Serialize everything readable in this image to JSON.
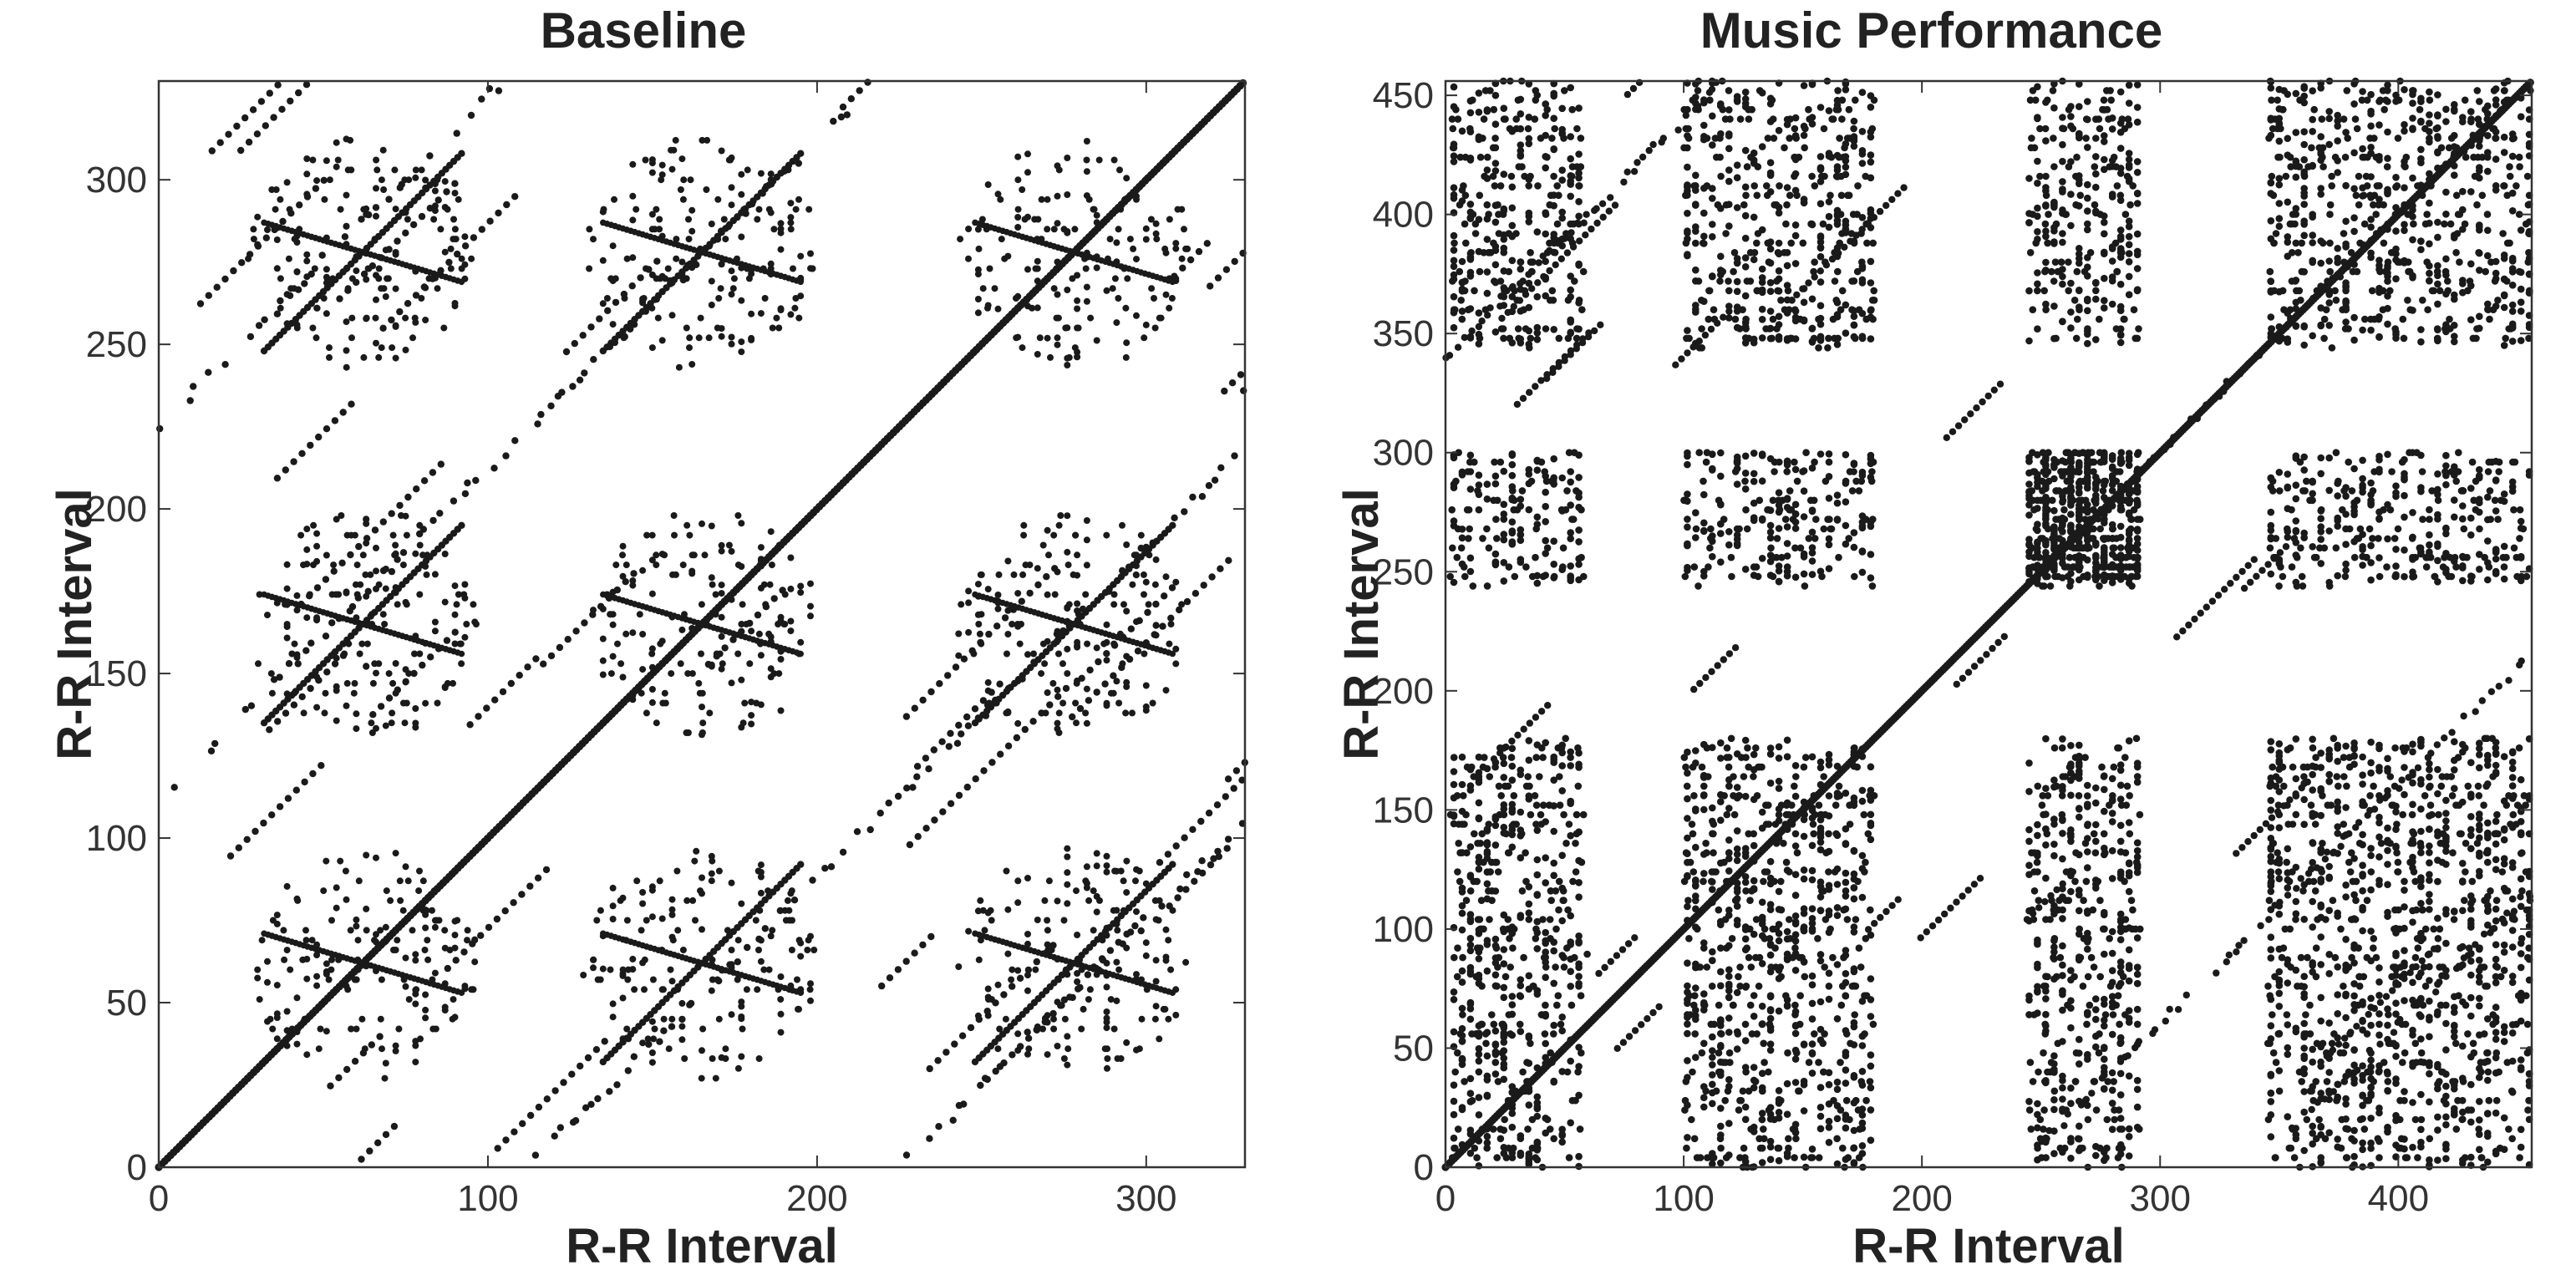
{
  "chart_data": [
    {
      "type": "scatter",
      "title": "Baseline",
      "xlabel": "R-R Interval",
      "ylabel": "R-R Interval",
      "xlim": [
        0,
        330
      ],
      "ylim": [
        0,
        330
      ],
      "xticks": [
        0,
        100,
        200,
        300
      ],
      "yticks": [
        0,
        50,
        100,
        150,
        200,
        250,
        300
      ],
      "grid": false,
      "legend": "none",
      "marker_color": "#1a1a1a",
      "description_points": "recurrence plot; dense diagonal line plus periodic off-diagonal bands spaced ~110 units",
      "diagonal_line": [
        [
          0,
          0
        ],
        [
          330,
          330
        ]
      ],
      "off_diagonal_lines": [
        {
          "x": [
            0,
            215
          ],
          "offset": 112
        },
        {
          "x": [
            0,
            105
          ],
          "offset": 225
        },
        {
          "x": [
            112,
            330
          ],
          "offset": -112
        },
        {
          "x": [
            225,
            330
          ],
          "offset": -225
        }
      ],
      "clusters": [
        {
          "x": 62,
          "y": 62,
          "r": 35
        },
        {
          "x": 62,
          "y": 165,
          "r": 35
        },
        {
          "x": 62,
          "y": 278,
          "r": 35
        },
        {
          "x": 165,
          "y": 62,
          "r": 35
        },
        {
          "x": 165,
          "y": 165,
          "r": 35
        },
        {
          "x": 165,
          "y": 278,
          "r": 35
        },
        {
          "x": 278,
          "y": 62,
          "r": 35
        },
        {
          "x": 278,
          "y": 165,
          "r": 35
        },
        {
          "x": 278,
          "y": 278,
          "r": 35
        }
      ]
    },
    {
      "type": "scatter",
      "title": "Music Performance",
      "xlabel": "R-R Interval",
      "ylabel": "R-R Interval",
      "xlim": [
        0,
        456
      ],
      "ylim": [
        0,
        456
      ],
      "xticks": [
        0,
        100,
        200,
        300,
        400
      ],
      "yticks": [
        0,
        50,
        100,
        150,
        200,
        250,
        300,
        350,
        400,
        450
      ],
      "grid": false,
      "legend": "none",
      "marker_color": "#1a1a1a",
      "description_points": "recurrence plot; diagonal line plus dense rectangular blocks",
      "diagonal_line": [
        [
          0,
          0
        ],
        [
          456,
          456
        ]
      ],
      "x_bands": [
        [
          2,
          58
        ],
        [
          100,
          180
        ],
        [
          245,
          292
        ],
        [
          345,
          456
        ]
      ],
      "y_bands": [
        [
          0,
          180
        ],
        [
          245,
          300
        ],
        [
          345,
          456
        ]
      ],
      "dense_block": {
        "x": [
          245,
          292
        ],
        "y": [
          245,
          292
        ]
      },
      "off_diagonal_lines": [
        {
          "x": [
            0,
            120
          ],
          "offset": 340
        },
        {
          "x": [
            245,
            456
          ],
          "offset": 0
        },
        {
          "x": [
            340,
            456
          ],
          "offset": -340
        },
        {
          "x": [
            250,
            456
          ],
          "offset": -240
        }
      ]
    }
  ]
}
